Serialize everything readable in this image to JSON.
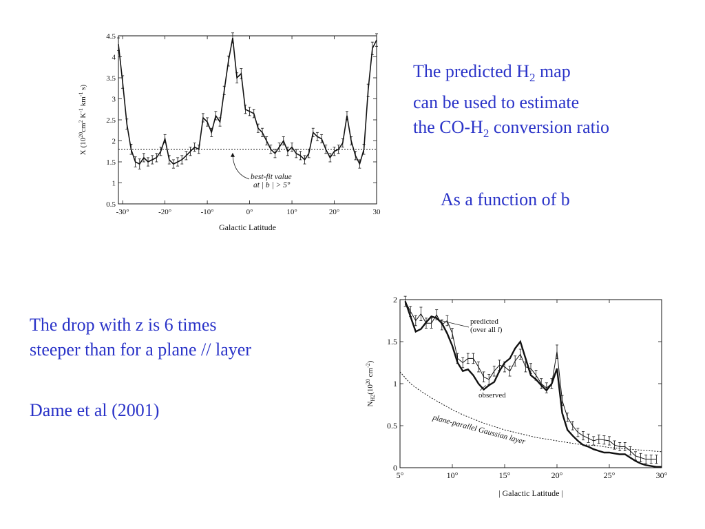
{
  "text_top_right": {
    "line1_pre": "The predicted H",
    "line1_sub": "2",
    "line1_post": " map",
    "line2": "can be used to estimate",
    "line3_pre": "the CO-H",
    "line3_sub": "2",
    "line3_post": " conversion ratio",
    "line4": "As a function of  b"
  },
  "text_bottom_left": {
    "line1": "The drop with z is 6 times",
    "line2": "steeper than for a plane // layer",
    "line3": "Dame et al (2001)"
  },
  "colors": {
    "slide_text": "#2a33c8",
    "chart_ink": "#111111"
  },
  "chart_data": [
    {
      "type": "line",
      "xlabel": "Galactic Latitude",
      "ylabel_parts": {
        "pre": "X (10",
        "sup1": "20",
        "mid1": "cm",
        "sup2": "2",
        "mid2": " K",
        "sup3": "-1",
        "mid3": " km",
        "sup4": "-1",
        "post": " s)"
      },
      "xlim": [
        -31,
        30
      ],
      "ylim": [
        0.5,
        4.5
      ],
      "xticks": [
        -30,
        -20,
        -10,
        0,
        10,
        20,
        30
      ],
      "xtick_labels": [
        "-30°",
        "-20°",
        "-10°",
        "0°",
        "10°",
        "20°",
        "30"
      ],
      "yticks": [
        0.5,
        1,
        1.5,
        2,
        2.5,
        3,
        3.5,
        4,
        4.5
      ],
      "ytick_labels": [
        "0.5",
        "1",
        "1.5",
        "2",
        "2.5",
        "3",
        "3.5",
        "4",
        "4.5"
      ],
      "reference_line": {
        "y": 1.8,
        "style": "dotted"
      },
      "annotation": {
        "line1": "best-fit value",
        "line2": "at | b | > 5°",
        "arrow_to": [
          -4,
          1.75
        ]
      },
      "series": [
        {
          "x": [
            -31,
            -30,
            -29,
            -28,
            -27,
            -26,
            -25,
            -24,
            -23,
            -22,
            -21,
            -20,
            -19,
            -18,
            -17,
            -16,
            -15,
            -14,
            -13,
            -12,
            -11,
            -10,
            -9,
            -8,
            -7,
            -6,
            -5,
            -4,
            -3,
            -2,
            -1,
            0,
            1,
            2,
            3,
            4,
            5,
            6,
            7,
            8,
            9,
            10,
            11,
            12,
            13,
            14,
            15,
            16,
            17,
            18,
            19,
            20,
            21,
            22,
            23,
            24,
            25,
            26,
            27,
            28,
            29,
            30
          ],
          "y": [
            4.3,
            3.4,
            2.4,
            1.8,
            1.5,
            1.45,
            1.6,
            1.5,
            1.55,
            1.6,
            1.75,
            2.05,
            1.55,
            1.45,
            1.5,
            1.55,
            1.65,
            1.75,
            1.85,
            1.8,
            2.55,
            2.45,
            2.2,
            2.6,
            2.45,
            3.2,
            3.9,
            4.45,
            3.5,
            3.6,
            2.75,
            2.7,
            2.65,
            2.3,
            2.2,
            2.0,
            1.8,
            1.7,
            1.85,
            2.0,
            1.75,
            1.85,
            1.7,
            1.65,
            1.55,
            1.7,
            2.2,
            2.1,
            2.05,
            1.8,
            1.6,
            1.75,
            1.8,
            1.95,
            2.6,
            2.0,
            1.65,
            1.45,
            1.8,
            3.2,
            4.2,
            4.4
          ],
          "error": [
            0.15,
            0.15,
            0.12,
            0.12,
            0.12,
            0.12,
            0.1,
            0.1,
            0.1,
            0.1,
            0.1,
            0.1,
            0.1,
            0.1,
            0.1,
            0.1,
            0.1,
            0.1,
            0.1,
            0.1,
            0.1,
            0.1,
            0.1,
            0.1,
            0.1,
            0.1,
            0.12,
            0.12,
            0.12,
            0.12,
            0.1,
            0.1,
            0.1,
            0.1,
            0.1,
            0.1,
            0.1,
            0.1,
            0.1,
            0.1,
            0.1,
            0.1,
            0.1,
            0.1,
            0.1,
            0.1,
            0.1,
            0.1,
            0.1,
            0.1,
            0.1,
            0.1,
            0.1,
            0.1,
            0.1,
            0.1,
            0.1,
            0.1,
            0.12,
            0.15,
            0.15,
            0.15
          ]
        }
      ]
    },
    {
      "type": "line",
      "xlabel": "| Galactic Latitude |",
      "ylabel_parts": {
        "pre": "N",
        "sub": "H2",
        "mid": "(10",
        "sup1": "20",
        "mid2": " cm",
        "sup2": "-2",
        "post": ")"
      },
      "xlim": [
        5,
        30
      ],
      "ylim": [
        0,
        2
      ],
      "xticks": [
        5,
        10,
        15,
        20,
        25,
        30
      ],
      "xtick_labels": [
        "5°",
        "10°",
        "15°",
        "20°",
        "25°",
        "30°"
      ],
      "yticks": [
        0,
        0.5,
        1,
        1.5,
        2
      ],
      "ytick_labels": [
        "0",
        "0.5",
        "1",
        "1.5",
        "2"
      ],
      "labels": {
        "predicted": {
          "line1": "predicted",
          "line2_pre": "(over all ",
          "line2_l": "l",
          "line2_post": ")"
        },
        "observed": "observed",
        "gaussian": "plane-parallel Gaussian layer"
      },
      "series": [
        {
          "name": "predicted",
          "x": [
            5.5,
            6.0,
            6.5,
            7.0,
            7.5,
            8.0,
            8.5,
            9.0,
            9.5,
            10.0,
            10.5,
            11.0,
            11.5,
            12.0,
            12.5,
            13.0,
            13.5,
            14.0,
            14.5,
            15.0,
            15.5,
            16.0,
            16.5,
            17.0,
            17.5,
            18.0,
            18.5,
            19.0,
            19.5,
            20.0,
            20.5,
            21.0,
            21.5,
            22.0,
            22.5,
            23.0,
            23.5,
            24.0,
            24.5,
            25.0,
            25.5,
            26.0,
            26.5,
            27.0,
            27.5,
            28.0,
            28.5,
            29.0,
            29.5
          ],
          "y": [
            1.98,
            1.86,
            1.75,
            1.83,
            1.72,
            1.72,
            1.82,
            1.7,
            1.75,
            1.6,
            1.3,
            1.25,
            1.3,
            1.3,
            1.2,
            1.08,
            1.05,
            1.15,
            1.22,
            1.2,
            1.15,
            1.27,
            1.35,
            1.2,
            1.18,
            1.1,
            1.0,
            0.95,
            1.0,
            1.38,
            0.8,
            0.6,
            0.5,
            0.42,
            0.38,
            0.35,
            0.32,
            0.34,
            0.33,
            0.32,
            0.27,
            0.25,
            0.25,
            0.2,
            0.14,
            0.12,
            0.1,
            0.1,
            0.1
          ],
          "error": [
            0.06,
            0.06,
            0.06,
            0.08,
            0.06,
            0.06,
            0.06,
            0.06,
            0.06,
            0.06,
            0.06,
            0.06,
            0.06,
            0.06,
            0.06,
            0.06,
            0.06,
            0.06,
            0.06,
            0.06,
            0.06,
            0.06,
            0.06,
            0.06,
            0.06,
            0.06,
            0.06,
            0.06,
            0.06,
            0.08,
            0.06,
            0.05,
            0.05,
            0.05,
            0.05,
            0.05,
            0.05,
            0.05,
            0.05,
            0.05,
            0.05,
            0.05,
            0.05,
            0.05,
            0.05,
            0.05,
            0.05,
            0.05,
            0.05
          ]
        },
        {
          "name": "observed",
          "x": [
            5.5,
            6.0,
            6.5,
            7.0,
            7.5,
            8.0,
            8.5,
            9.0,
            9.5,
            10.0,
            10.5,
            11.0,
            11.5,
            12.0,
            12.5,
            13.0,
            13.5,
            14.0,
            14.5,
            15.0,
            15.5,
            16.0,
            16.5,
            17.0,
            17.5,
            18.0,
            18.5,
            19.0,
            19.5,
            20.0,
            20.5,
            21.0,
            21.5,
            22.0,
            22.5,
            23.0,
            23.5,
            24.0,
            24.5,
            25.0,
            25.5,
            26.0,
            26.5,
            27.0,
            27.5,
            28.0,
            28.5,
            29.0,
            29.5,
            30.0
          ],
          "y": [
            1.98,
            1.8,
            1.62,
            1.65,
            1.73,
            1.8,
            1.78,
            1.72,
            1.6,
            1.45,
            1.25,
            1.15,
            1.17,
            1.1,
            1.0,
            0.93,
            0.98,
            1.02,
            1.15,
            1.25,
            1.3,
            1.42,
            1.5,
            1.3,
            1.1,
            1.05,
            0.98,
            0.92,
            1.0,
            1.18,
            0.65,
            0.45,
            0.38,
            0.32,
            0.27,
            0.25,
            0.22,
            0.2,
            0.18,
            0.18,
            0.17,
            0.16,
            0.16,
            0.12,
            0.08,
            0.05,
            0.03,
            0.02,
            0.01,
            0.01
          ]
        },
        {
          "name": "plane-parallel Gaussian layer",
          "x": [
            5,
            6,
            7,
            8,
            9,
            10,
            11,
            12,
            13,
            14,
            15,
            16,
            17,
            18,
            19,
            20,
            21,
            22,
            23,
            24,
            25,
            26,
            27,
            28,
            29,
            30
          ],
          "y": [
            1.14,
            1.0,
            0.91,
            0.83,
            0.76,
            0.69,
            0.63,
            0.58,
            0.53,
            0.49,
            0.45,
            0.42,
            0.39,
            0.36,
            0.34,
            0.32,
            0.3,
            0.28,
            0.27,
            0.26,
            0.24,
            0.23,
            0.22,
            0.21,
            0.2,
            0.19
          ]
        }
      ]
    }
  ]
}
